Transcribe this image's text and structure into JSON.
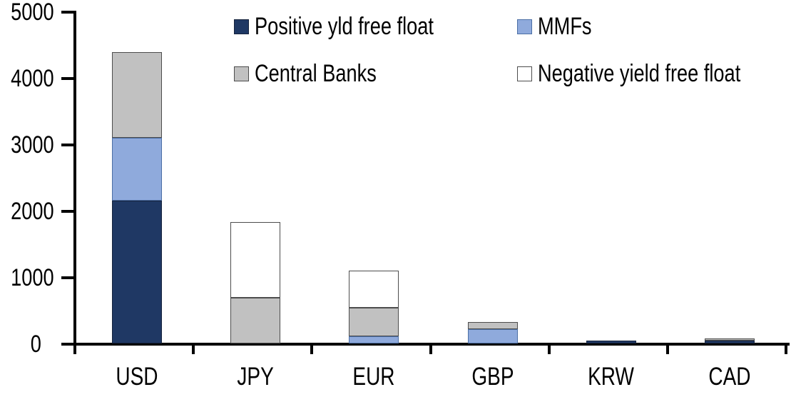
{
  "chart_data": {
    "type": "bar",
    "stacked": true,
    "title": "",
    "xlabel": "",
    "ylabel": "",
    "categories": [
      "USD",
      "JPY",
      "EUR",
      "GBP",
      "KRW",
      "CAD"
    ],
    "series": [
      {
        "name": "Positive yld free float",
        "color": "#1F3864",
        "border": "#16233D",
        "values": [
          2150,
          0,
          0,
          0,
          45,
          40
        ]
      },
      {
        "name": "MMFs",
        "color": "#8FAADC",
        "border": "#4C6FA5",
        "values": [
          950,
          0,
          110,
          215,
          0,
          0
        ]
      },
      {
        "name": "Central Banks",
        "color": "#C1C1C1",
        "border": "#4D4D4D",
        "values": [
          1290,
          690,
          425,
          110,
          0,
          30
        ]
      },
      {
        "name": "Negative yield free float",
        "color": "#FFFFFF",
        "border": "#4D4D4D",
        "values": [
          0,
          1140,
          565,
          0,
          0,
          0
        ]
      }
    ],
    "totals": [
      4390,
      1830,
      1100,
      325,
      45,
      70
    ],
    "ylim": [
      0,
      5000
    ],
    "yticks": [
      0,
      1000,
      2000,
      3000,
      4000,
      5000
    ],
    "grid": false,
    "legend_position": "top",
    "legend_rows": [
      [
        "Positive yld free float",
        "MMFs"
      ],
      [
        "Central Banks",
        "Negative yield free float"
      ]
    ]
  }
}
